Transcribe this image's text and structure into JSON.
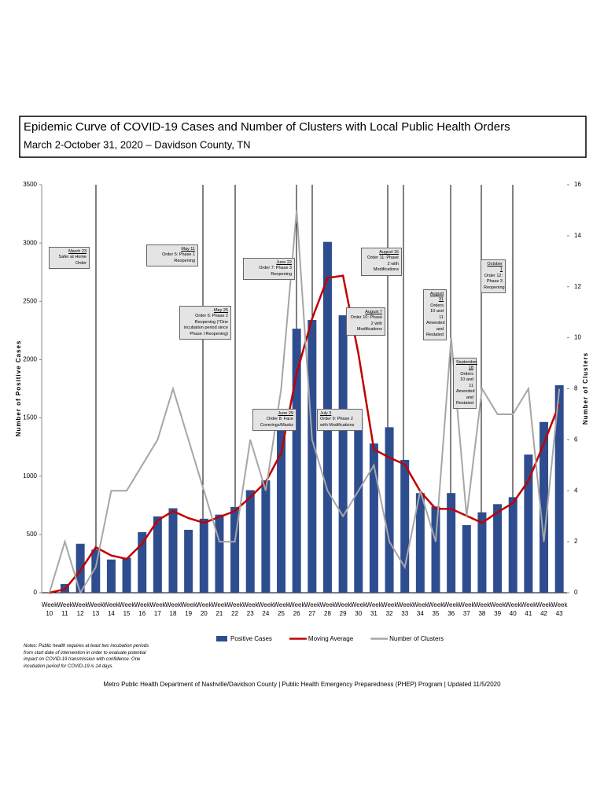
{
  "chart_data": {
    "type": "bar",
    "title": "Epidemic Curve of COVID-19 Cases and Number of Clusters with Local Public Health Orders",
    "subtitle": "March 2-October 31, 2020 – Davidson County, TN",
    "y_label": "Number of Positive Cases",
    "y2_label": "Number of Clusters",
    "categories": [
      "Week 10",
      "Week 11",
      "Week 12",
      "Week 13",
      "Week 14",
      "Week 15",
      "Week 16",
      "Week 17",
      "Week 18",
      "Week 19",
      "Week 20",
      "Week 21",
      "Week 22",
      "Week 23",
      "Week 24",
      "Week 25",
      "Week 26",
      "Week 27",
      "Week 28",
      "Week 29",
      "Week 30",
      "Week 31",
      "Week 32",
      "Week 33",
      "Week 34",
      "Week 35",
      "Week 36",
      "Week 37",
      "Week 38",
      "Week 39",
      "Week 40",
      "Week 41",
      "Week 42",
      "Week 43"
    ],
    "series": [
      {
        "name": "Positive Cases",
        "type": "bar",
        "color": "#2e4d8f",
        "values": [
          0,
          75,
          420,
          370,
          285,
          300,
          520,
          655,
          725,
          540,
          635,
          670,
          735,
          880,
          965,
          1490,
          2265,
          2340,
          3010,
          2380,
          1500,
          1280,
          1420,
          1140,
          855,
          740,
          855,
          580,
          690,
          760,
          820,
          1185,
          1465,
          1780
        ]
      },
      {
        "name": "Moving Average",
        "type": "line",
        "color": "#c00000",
        "values": [
          0,
          30,
          190,
          390,
          320,
          290,
          420,
          620,
          700,
          640,
          600,
          650,
          700,
          820,
          950,
          1200,
          1880,
          2350,
          2700,
          2720,
          2050,
          1230,
          1160,
          1100,
          870,
          720,
          720,
          660,
          600,
          690,
          770,
          960,
          1280,
          1620
        ]
      },
      {
        "name": "Number of Clusters",
        "type": "line",
        "axis": "y2",
        "color": "#a6a6a6",
        "values": [
          0,
          2,
          0,
          1,
          4,
          4,
          5,
          6,
          8,
          6,
          4,
          2,
          2,
          6,
          4,
          8,
          15,
          6,
          4,
          3,
          4,
          5,
          2,
          1,
          4,
          2,
          10,
          3,
          8,
          7,
          7,
          8,
          2,
          8
        ]
      }
    ],
    "ylim": [
      0,
      3500
    ],
    "yticks": [
      0,
      500,
      1000,
      1500,
      2000,
      2500,
      3000,
      3500
    ],
    "y2lim": [
      0,
      16
    ],
    "y2ticks": [
      0,
      2,
      4,
      6,
      8,
      10,
      12,
      14,
      16
    ],
    "annotations": [
      {
        "date": "March 23",
        "text": "Safer at Home Order"
      },
      {
        "date": "May 11",
        "text": "Order 5: Phase 1 Reopening"
      },
      {
        "date": "May 25",
        "text": "Order 6: Phase 2 Reopening (*One incubation period since Phase I Reopening)"
      },
      {
        "date": "June 22",
        "text": "Order 7: Phase 3 Reopening"
      },
      {
        "date": "June 29",
        "text": "Order 8: Face Coverings/Masks"
      },
      {
        "date": "July 3",
        "text": "Order 9: Phase 2 with Modifications"
      },
      {
        "date": "August 7",
        "text": "Order 10: Phase 2 with Modifications"
      },
      {
        "date": "August 15",
        "text": "Order 11: Phase 2 with Modifications"
      },
      {
        "date": "August 31",
        "text": "Orders 10 and 11 Amended and Restated"
      },
      {
        "date": "September 18",
        "text": "Orders 10 and 11 Amended and Restated"
      },
      {
        "date": "October 1",
        "text": "Order 12: Phase 3 Reopening"
      }
    ],
    "notes": "Notes: Public health requires at least two incubation periods from start date of intervention in order to evaluate potential impact on COVID-19 transmission with confidence. One incubation period for COVID-19 is 14 days.",
    "footer": "Metro Public Health Department of Nashville/Davidson County  |  Public Health Emergency Preparedness (PHEP) Program  |  Updated 11/5/2020"
  }
}
